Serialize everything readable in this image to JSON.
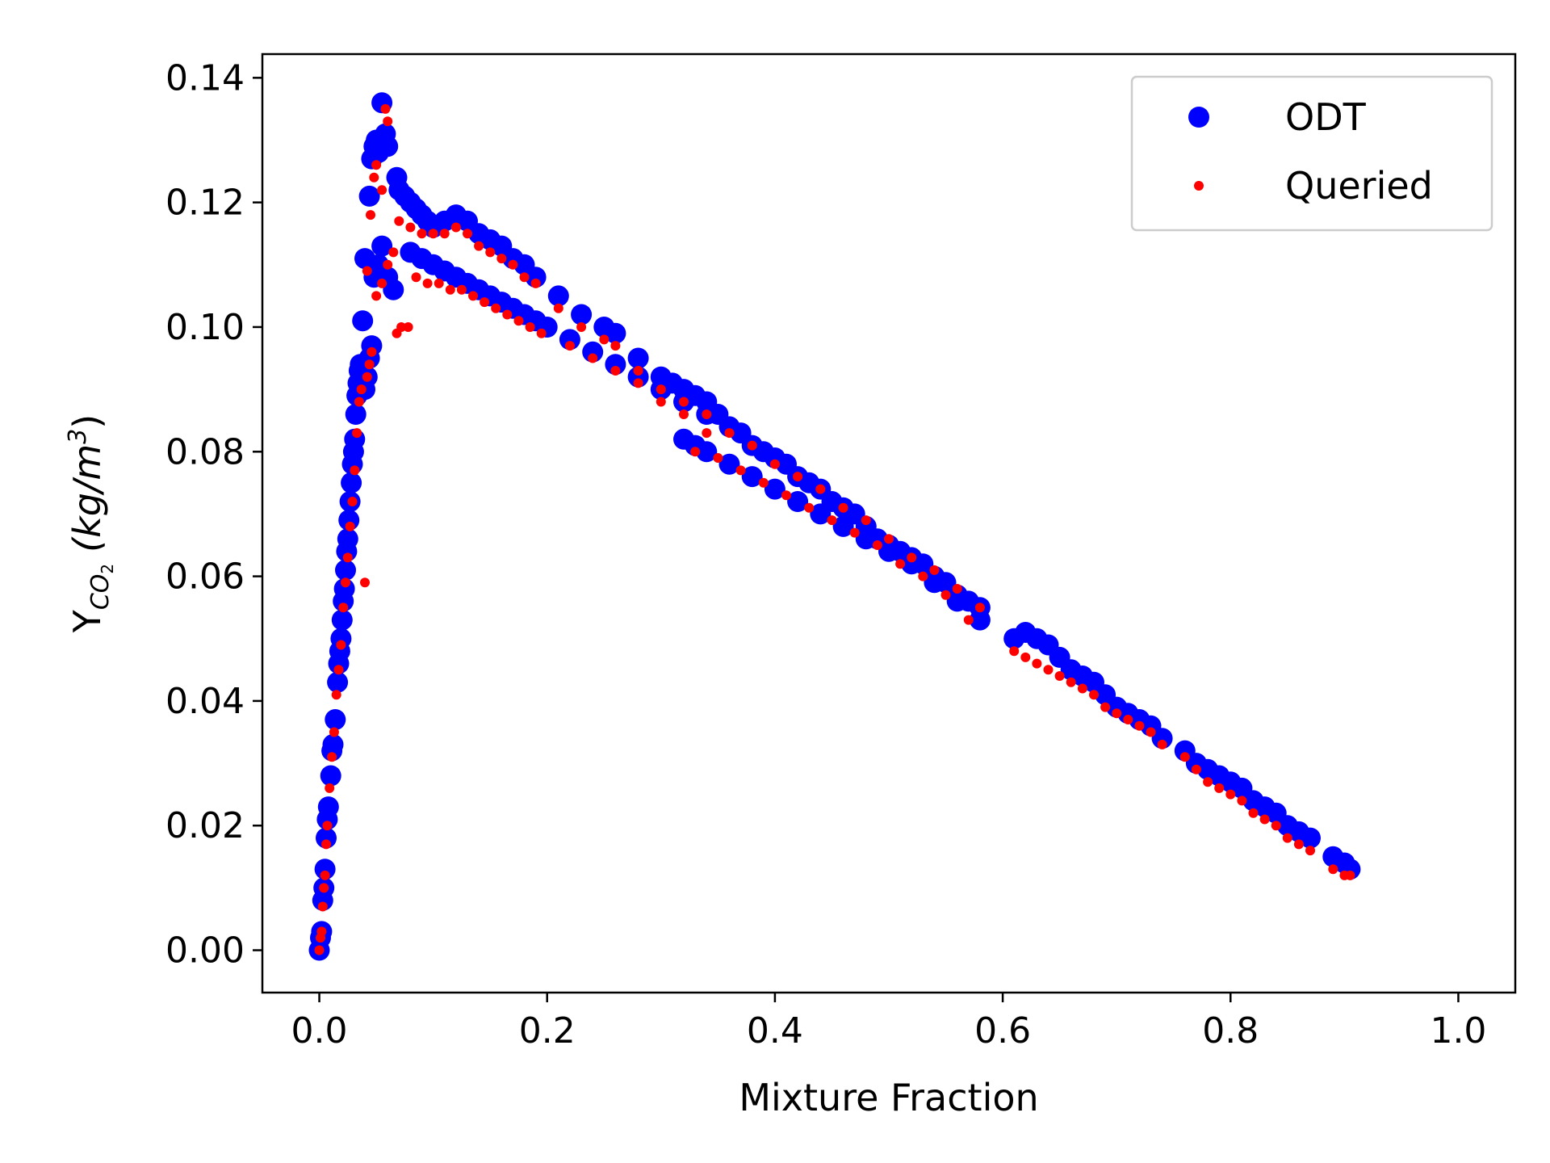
{
  "chart_data": {
    "type": "scatter",
    "title": "",
    "xlabel": "Mixture Fraction",
    "ylabel_main": "Y",
    "ylabel_sub": "CO",
    "ylabel_subsub": "2",
    "ylabel_units_open": "(kg/m",
    "ylabel_units_sup": "3",
    "ylabel_units_close": ")",
    "xlim": [
      -0.05,
      1.05
    ],
    "ylim": [
      -0.0068,
      0.1438
    ],
    "x_ticks": [
      0.0,
      0.2,
      0.4,
      0.6,
      0.8,
      1.0
    ],
    "x_tick_labels": [
      "0.0",
      "0.2",
      "0.4",
      "0.6",
      "0.8",
      "1.0"
    ],
    "y_ticks": [
      0.0,
      0.02,
      0.04,
      0.06,
      0.08,
      0.1,
      0.12,
      0.14
    ],
    "y_tick_labels": [
      "0.00",
      "0.02",
      "0.04",
      "0.06",
      "0.08",
      "0.10",
      "0.12",
      "0.14"
    ],
    "grid": false,
    "legend": {
      "placement": "top-right",
      "entries": [
        "ODT",
        "Queried"
      ]
    },
    "series": [
      {
        "name": "ODT",
        "color": "#0000ff",
        "marker": "large-circle",
        "points": [
          [
            0.0,
            0.0
          ],
          [
            0.001,
            0.002
          ],
          [
            0.002,
            0.003
          ],
          [
            0.003,
            0.008
          ],
          [
            0.004,
            0.01
          ],
          [
            0.005,
            0.013
          ],
          [
            0.006,
            0.018
          ],
          [
            0.007,
            0.021
          ],
          [
            0.008,
            0.023
          ],
          [
            0.01,
            0.028
          ],
          [
            0.011,
            0.032
          ],
          [
            0.012,
            0.033
          ],
          [
            0.014,
            0.037
          ],
          [
            0.016,
            0.043
          ],
          [
            0.017,
            0.046
          ],
          [
            0.018,
            0.048
          ],
          [
            0.019,
            0.05
          ],
          [
            0.02,
            0.053
          ],
          [
            0.021,
            0.056
          ],
          [
            0.022,
            0.058
          ],
          [
            0.023,
            0.061
          ],
          [
            0.024,
            0.064
          ],
          [
            0.025,
            0.066
          ],
          [
            0.026,
            0.069
          ],
          [
            0.027,
            0.072
          ],
          [
            0.028,
            0.075
          ],
          [
            0.029,
            0.078
          ],
          [
            0.03,
            0.08
          ],
          [
            0.031,
            0.082
          ],
          [
            0.032,
            0.086
          ],
          [
            0.033,
            0.089
          ],
          [
            0.034,
            0.091
          ],
          [
            0.035,
            0.093
          ],
          [
            0.036,
            0.094
          ],
          [
            0.038,
            0.093
          ],
          [
            0.04,
            0.09
          ],
          [
            0.042,
            0.092
          ],
          [
            0.044,
            0.095
          ],
          [
            0.046,
            0.097
          ],
          [
            0.038,
            0.101
          ],
          [
            0.04,
            0.111
          ],
          [
            0.044,
            0.121
          ],
          [
            0.046,
            0.127
          ],
          [
            0.048,
            0.129
          ],
          [
            0.05,
            0.13
          ],
          [
            0.052,
            0.128
          ],
          [
            0.055,
            0.136
          ],
          [
            0.058,
            0.131
          ],
          [
            0.06,
            0.129
          ],
          [
            0.048,
            0.108
          ],
          [
            0.052,
            0.11
          ],
          [
            0.055,
            0.113
          ],
          [
            0.06,
            0.108
          ],
          [
            0.065,
            0.106
          ],
          [
            0.068,
            0.124
          ],
          [
            0.07,
            0.122
          ],
          [
            0.075,
            0.121
          ],
          [
            0.08,
            0.12
          ],
          [
            0.085,
            0.119
          ],
          [
            0.09,
            0.118
          ],
          [
            0.095,
            0.117
          ],
          [
            0.1,
            0.116
          ],
          [
            0.11,
            0.117
          ],
          [
            0.12,
            0.118
          ],
          [
            0.13,
            0.117
          ],
          [
            0.14,
            0.115
          ],
          [
            0.15,
            0.114
          ],
          [
            0.16,
            0.113
          ],
          [
            0.17,
            0.111
          ],
          [
            0.18,
            0.11
          ],
          [
            0.19,
            0.108
          ],
          [
            0.08,
            0.112
          ],
          [
            0.09,
            0.111
          ],
          [
            0.1,
            0.11
          ],
          [
            0.11,
            0.109
          ],
          [
            0.12,
            0.108
          ],
          [
            0.13,
            0.107
          ],
          [
            0.14,
            0.106
          ],
          [
            0.15,
            0.105
          ],
          [
            0.16,
            0.104
          ],
          [
            0.17,
            0.103
          ],
          [
            0.18,
            0.102
          ],
          [
            0.19,
            0.101
          ],
          [
            0.2,
            0.1
          ],
          [
            0.21,
            0.105
          ],
          [
            0.23,
            0.102
          ],
          [
            0.25,
            0.1
          ],
          [
            0.26,
            0.099
          ],
          [
            0.28,
            0.095
          ],
          [
            0.3,
            0.092
          ],
          [
            0.31,
            0.091
          ],
          [
            0.32,
            0.09
          ],
          [
            0.33,
            0.089
          ],
          [
            0.34,
            0.088
          ],
          [
            0.35,
            0.086
          ],
          [
            0.36,
            0.084
          ],
          [
            0.37,
            0.083
          ],
          [
            0.38,
            0.081
          ],
          [
            0.39,
            0.08
          ],
          [
            0.4,
            0.079
          ],
          [
            0.41,
            0.078
          ],
          [
            0.42,
            0.076
          ],
          [
            0.43,
            0.075
          ],
          [
            0.44,
            0.074
          ],
          [
            0.45,
            0.072
          ],
          [
            0.46,
            0.071
          ],
          [
            0.47,
            0.07
          ],
          [
            0.48,
            0.068
          ],
          [
            0.49,
            0.066
          ],
          [
            0.5,
            0.065
          ],
          [
            0.51,
            0.064
          ],
          [
            0.52,
            0.063
          ],
          [
            0.53,
            0.062
          ],
          [
            0.54,
            0.06
          ],
          [
            0.55,
            0.059
          ],
          [
            0.56,
            0.057
          ],
          [
            0.57,
            0.056
          ],
          [
            0.58,
            0.055
          ],
          [
            0.22,
            0.098
          ],
          [
            0.24,
            0.096
          ],
          [
            0.26,
            0.094
          ],
          [
            0.28,
            0.092
          ],
          [
            0.3,
            0.09
          ],
          [
            0.32,
            0.088
          ],
          [
            0.34,
            0.086
          ],
          [
            0.32,
            0.082
          ],
          [
            0.33,
            0.081
          ],
          [
            0.34,
            0.08
          ],
          [
            0.36,
            0.078
          ],
          [
            0.38,
            0.076
          ],
          [
            0.4,
            0.074
          ],
          [
            0.42,
            0.072
          ],
          [
            0.44,
            0.07
          ],
          [
            0.46,
            0.068
          ],
          [
            0.48,
            0.066
          ],
          [
            0.5,
            0.064
          ],
          [
            0.52,
            0.062
          ],
          [
            0.54,
            0.059
          ],
          [
            0.56,
            0.056
          ],
          [
            0.58,
            0.053
          ],
          [
            0.61,
            0.05
          ],
          [
            0.62,
            0.051
          ],
          [
            0.63,
            0.05
          ],
          [
            0.64,
            0.049
          ],
          [
            0.65,
            0.047
          ],
          [
            0.66,
            0.045
          ],
          [
            0.67,
            0.044
          ],
          [
            0.68,
            0.043
          ],
          [
            0.69,
            0.041
          ],
          [
            0.7,
            0.039
          ],
          [
            0.71,
            0.038
          ],
          [
            0.72,
            0.037
          ],
          [
            0.73,
            0.036
          ],
          [
            0.74,
            0.034
          ],
          [
            0.76,
            0.032
          ],
          [
            0.77,
            0.03
          ],
          [
            0.78,
            0.029
          ],
          [
            0.79,
            0.028
          ],
          [
            0.8,
            0.027
          ],
          [
            0.81,
            0.026
          ],
          [
            0.82,
            0.024
          ],
          [
            0.83,
            0.023
          ],
          [
            0.84,
            0.022
          ],
          [
            0.85,
            0.02
          ],
          [
            0.86,
            0.019
          ],
          [
            0.87,
            0.018
          ],
          [
            0.89,
            0.015
          ],
          [
            0.9,
            0.014
          ],
          [
            0.905,
            0.013
          ]
        ]
      },
      {
        "name": "Queried",
        "color": "#ff0000",
        "marker": "small-dot",
        "points": [
          [
            0.0,
            0.0
          ],
          [
            0.001,
            0.002
          ],
          [
            0.002,
            0.003
          ],
          [
            0.003,
            0.007
          ],
          [
            0.004,
            0.01
          ],
          [
            0.005,
            0.012
          ],
          [
            0.006,
            0.017
          ],
          [
            0.007,
            0.02
          ],
          [
            0.009,
            0.026
          ],
          [
            0.011,
            0.031
          ],
          [
            0.013,
            0.035
          ],
          [
            0.015,
            0.041
          ],
          [
            0.017,
            0.045
          ],
          [
            0.019,
            0.049
          ],
          [
            0.021,
            0.055
          ],
          [
            0.023,
            0.059
          ],
          [
            0.025,
            0.063
          ],
          [
            0.027,
            0.068
          ],
          [
            0.029,
            0.072
          ],
          [
            0.031,
            0.077
          ],
          [
            0.033,
            0.083
          ],
          [
            0.035,
            0.088
          ],
          [
            0.037,
            0.09
          ],
          [
            0.04,
            0.059
          ],
          [
            0.042,
            0.092
          ],
          [
            0.044,
            0.094
          ],
          [
            0.046,
            0.096
          ],
          [
            0.042,
            0.109
          ],
          [
            0.045,
            0.118
          ],
          [
            0.048,
            0.124
          ],
          [
            0.05,
            0.126
          ],
          [
            0.055,
            0.122
          ],
          [
            0.058,
            0.135
          ],
          [
            0.06,
            0.133
          ],
          [
            0.05,
            0.105
          ],
          [
            0.055,
            0.107
          ],
          [
            0.06,
            0.11
          ],
          [
            0.065,
            0.112
          ],
          [
            0.068,
            0.099
          ],
          [
            0.072,
            0.1
          ],
          [
            0.078,
            0.1
          ],
          [
            0.07,
            0.117
          ],
          [
            0.08,
            0.116
          ],
          [
            0.09,
            0.115
          ],
          [
            0.1,
            0.115
          ],
          [
            0.11,
            0.115
          ],
          [
            0.12,
            0.116
          ],
          [
            0.13,
            0.115
          ],
          [
            0.14,
            0.113
          ],
          [
            0.15,
            0.112
          ],
          [
            0.16,
            0.111
          ],
          [
            0.17,
            0.11
          ],
          [
            0.18,
            0.108
          ],
          [
            0.19,
            0.107
          ],
          [
            0.085,
            0.108
          ],
          [
            0.095,
            0.107
          ],
          [
            0.105,
            0.107
          ],
          [
            0.115,
            0.106
          ],
          [
            0.125,
            0.106
          ],
          [
            0.135,
            0.105
          ],
          [
            0.145,
            0.104
          ],
          [
            0.155,
            0.103
          ],
          [
            0.165,
            0.102
          ],
          [
            0.175,
            0.101
          ],
          [
            0.185,
            0.1
          ],
          [
            0.195,
            0.099
          ],
          [
            0.21,
            0.103
          ],
          [
            0.23,
            0.1
          ],
          [
            0.25,
            0.098
          ],
          [
            0.26,
            0.097
          ],
          [
            0.28,
            0.093
          ],
          [
            0.3,
            0.09
          ],
          [
            0.32,
            0.088
          ],
          [
            0.34,
            0.086
          ],
          [
            0.36,
            0.083
          ],
          [
            0.38,
            0.081
          ],
          [
            0.4,
            0.078
          ],
          [
            0.42,
            0.076
          ],
          [
            0.44,
            0.074
          ],
          [
            0.46,
            0.071
          ],
          [
            0.48,
            0.069
          ],
          [
            0.5,
            0.066
          ],
          [
            0.52,
            0.063
          ],
          [
            0.54,
            0.061
          ],
          [
            0.56,
            0.058
          ],
          [
            0.58,
            0.055
          ],
          [
            0.22,
            0.097
          ],
          [
            0.24,
            0.095
          ],
          [
            0.26,
            0.093
          ],
          [
            0.28,
            0.091
          ],
          [
            0.3,
            0.088
          ],
          [
            0.32,
            0.086
          ],
          [
            0.34,
            0.083
          ],
          [
            0.33,
            0.08
          ],
          [
            0.35,
            0.079
          ],
          [
            0.37,
            0.077
          ],
          [
            0.39,
            0.075
          ],
          [
            0.41,
            0.073
          ],
          [
            0.43,
            0.071
          ],
          [
            0.45,
            0.069
          ],
          [
            0.47,
            0.067
          ],
          [
            0.49,
            0.065
          ],
          [
            0.51,
            0.062
          ],
          [
            0.53,
            0.06
          ],
          [
            0.55,
            0.057
          ],
          [
            0.57,
            0.053
          ],
          [
            0.61,
            0.048
          ],
          [
            0.62,
            0.047
          ],
          [
            0.63,
            0.046
          ],
          [
            0.64,
            0.045
          ],
          [
            0.65,
            0.044
          ],
          [
            0.66,
            0.043
          ],
          [
            0.67,
            0.042
          ],
          [
            0.68,
            0.041
          ],
          [
            0.69,
            0.039
          ],
          [
            0.7,
            0.038
          ],
          [
            0.71,
            0.037
          ],
          [
            0.72,
            0.036
          ],
          [
            0.73,
            0.035
          ],
          [
            0.74,
            0.033
          ],
          [
            0.76,
            0.031
          ],
          [
            0.77,
            0.029
          ],
          [
            0.78,
            0.027
          ],
          [
            0.79,
            0.026
          ],
          [
            0.8,
            0.025
          ],
          [
            0.81,
            0.024
          ],
          [
            0.82,
            0.022
          ],
          [
            0.83,
            0.021
          ],
          [
            0.84,
            0.02
          ],
          [
            0.85,
            0.018
          ],
          [
            0.86,
            0.017
          ],
          [
            0.87,
            0.016
          ],
          [
            0.89,
            0.013
          ],
          [
            0.9,
            0.012
          ],
          [
            0.905,
            0.012
          ]
        ]
      }
    ]
  }
}
